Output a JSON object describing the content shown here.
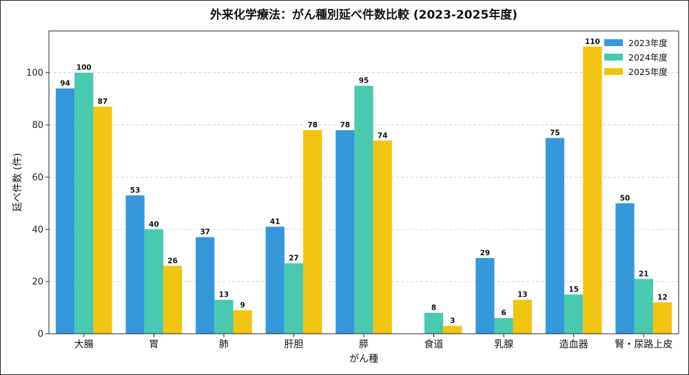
{
  "chart_data": {
    "type": "bar",
    "title": "外来化学療法：がん種別延べ件数比較 (2023-2025年度)",
    "xlabel": "がん種",
    "ylabel": "延べ件数 (件)",
    "ylim": [
      0,
      116
    ],
    "yticks": [
      0,
      20,
      40,
      60,
      80,
      100
    ],
    "grid": "horizontal-dashed",
    "legend_position": "top-right",
    "categories": [
      "大腸",
      "胃",
      "肺",
      "肝胆",
      "膵",
      "食道",
      "乳腺",
      "造血器",
      "腎・尿路上皮"
    ],
    "series": [
      {
        "name": "2023年度",
        "color": "#3498db",
        "values": [
          94,
          53,
          37,
          41,
          78,
          null,
          29,
          75,
          50
        ]
      },
      {
        "name": "2024年度",
        "color": "#48c9b0",
        "values": [
          100,
          40,
          13,
          27,
          95,
          8,
          6,
          15,
          21
        ]
      },
      {
        "name": "2025年度",
        "color": "#f1c40f",
        "values": [
          87,
          26,
          9,
          78,
          74,
          3,
          13,
          110,
          12
        ]
      }
    ]
  }
}
